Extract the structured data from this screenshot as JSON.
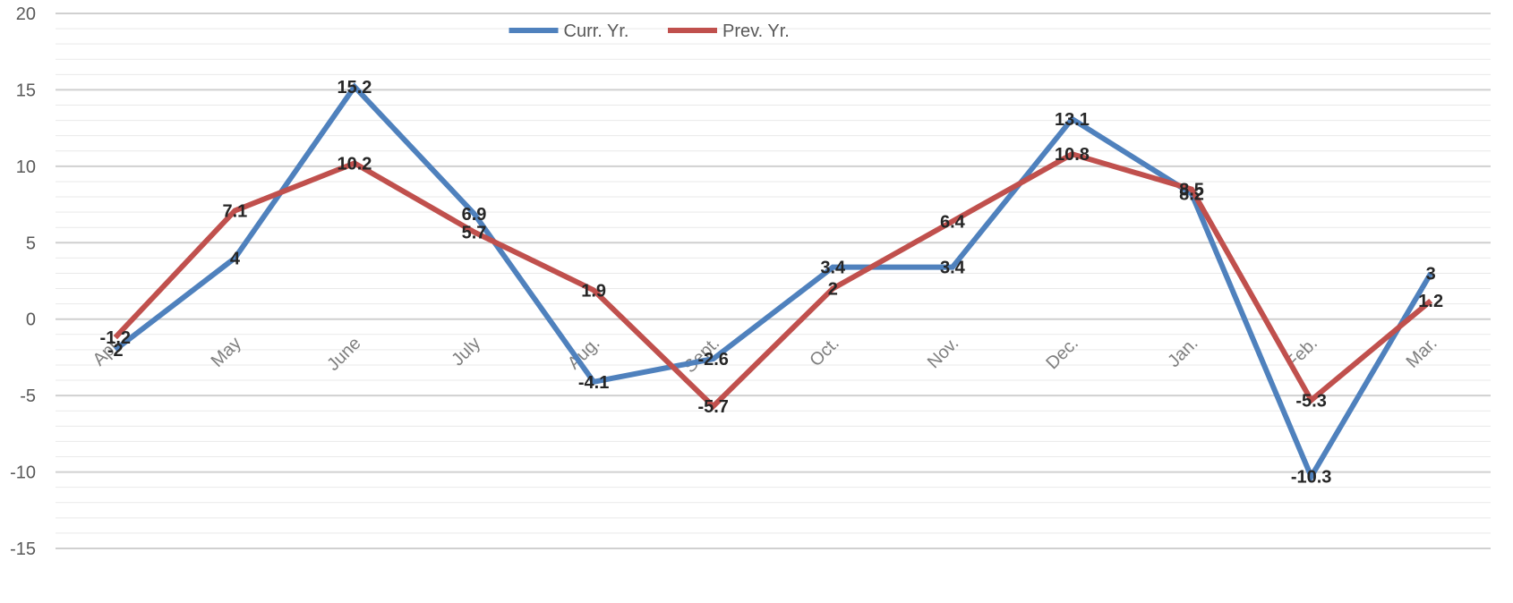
{
  "chart_data": {
    "type": "line",
    "title": "",
    "xlabel": "",
    "ylabel": "",
    "categories": [
      "Apr.",
      "May",
      "June",
      "July",
      "Aug.",
      "Sept.",
      "Oct.",
      "Nov.",
      "Dec.",
      "Jan.",
      "Feb.",
      "Mar."
    ],
    "ylim": [
      -15,
      20
    ],
    "yticks": [
      -15,
      -10,
      -5,
      0,
      5,
      10,
      15,
      20
    ],
    "grid": true,
    "legend_position": "top-center",
    "series": [
      {
        "name": "Curr. Yr.",
        "color": "#4f81bd",
        "values": [
          -2,
          4,
          15.2,
          6.9,
          -4.1,
          -2.6,
          3.4,
          3.4,
          13.1,
          8.2,
          -10.3,
          3
        ]
      },
      {
        "name": "Prev. Yr.",
        "color": "#c0504d",
        "values": [
          -1.2,
          7.1,
          10.2,
          5.7,
          1.9,
          -5.7,
          2,
          6.4,
          10.8,
          8.5,
          -5.3,
          1.2
        ]
      }
    ]
  }
}
